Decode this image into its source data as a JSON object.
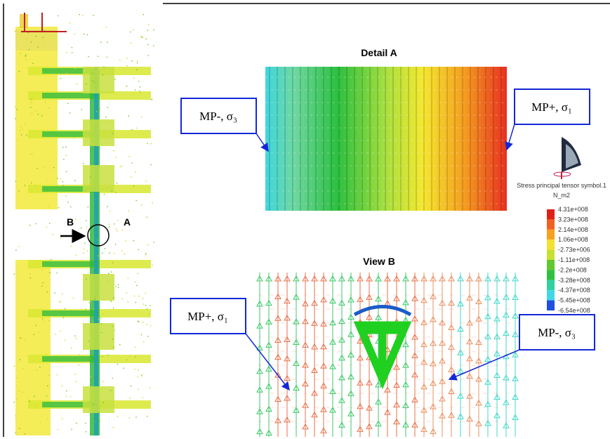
{
  "detail_a": {
    "title": "Detail A",
    "callouts": [
      "MP-, σ₃",
      "MP+, σ₁"
    ]
  },
  "view_b": {
    "title": "View B",
    "callouts": [
      "MP+, σ₁",
      "MP-, σ₃"
    ]
  },
  "section_labels": [
    "B",
    "A"
  ],
  "legend": {
    "title": "Stress principal tensor symbol.1",
    "unit": "N_m2",
    "labels": [
      "4.31e+008",
      "3.23e+008",
      "2.14e+008",
      "1.06e+008",
      "-2.73e+006",
      "-1.11e+008",
      "-2.2e+008",
      "-3.28e+008",
      "-4.37e+008",
      "-5.45e+008",
      "-6.54e+008"
    ]
  }
}
